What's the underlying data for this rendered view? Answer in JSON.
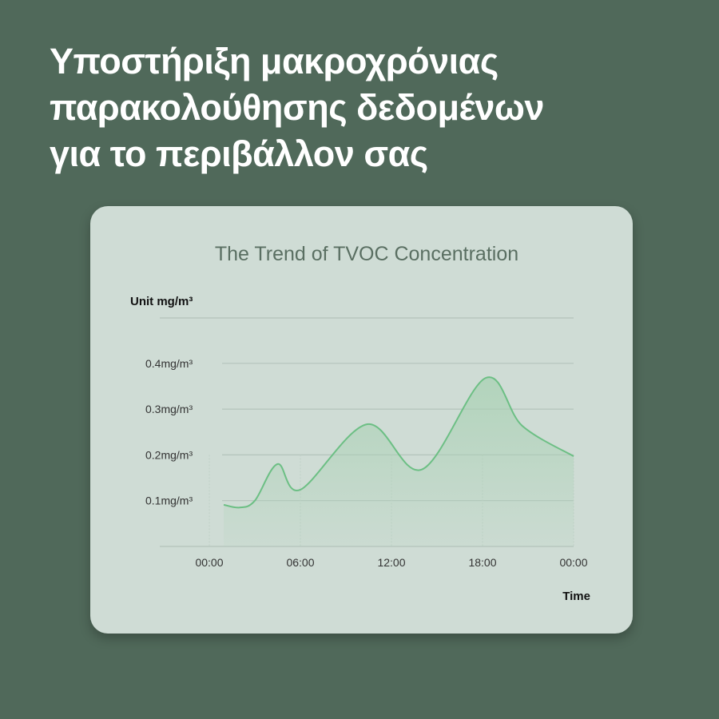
{
  "headline": {
    "lines": [
      "Υποστήριξη μακροχρόνιας",
      "παρακολούθησης δεδομένων",
      "για το περιβάλλον σας"
    ]
  },
  "colors": {
    "background": "#50695a",
    "card": "#cfdcd5",
    "line": "#6cbf84",
    "fill": "#a8d1b3"
  },
  "chart_data": {
    "type": "area",
    "title": "The Trend of TVOC Concentration",
    "ylabel": "Unit mg/m³",
    "xlabel": "Time",
    "x_tick_labels": [
      "00:00",
      "06:00",
      "12:00",
      "18:00",
      "00:00"
    ],
    "x_ticks_hours": [
      0,
      6,
      12,
      18,
      24
    ],
    "y_tick_labels": [
      "0.1mg/m³",
      "0.2mg/m³",
      "0.3mg/m³",
      "0.4mg/m³"
    ],
    "y_ticks": [
      0.1,
      0.2,
      0.3,
      0.4
    ],
    "xlim_hours": [
      0,
      24
    ],
    "ylim": [
      0,
      0.5
    ],
    "grid": "horizontal",
    "points": [
      {
        "hour": 0.95,
        "value": 0.091
      },
      {
        "hour": 2.0,
        "value": 0.085
      },
      {
        "hour": 3.0,
        "value": 0.1
      },
      {
        "hour": 4.5,
        "value": 0.18
      },
      {
        "hour": 6.0,
        "value": 0.124
      },
      {
        "hour": 10.4,
        "value": 0.267
      },
      {
        "hour": 14.0,
        "value": 0.168
      },
      {
        "hour": 18.2,
        "value": 0.368
      },
      {
        "hour": 20.6,
        "value": 0.264
      },
      {
        "hour": 24.0,
        "value": 0.197
      }
    ]
  }
}
